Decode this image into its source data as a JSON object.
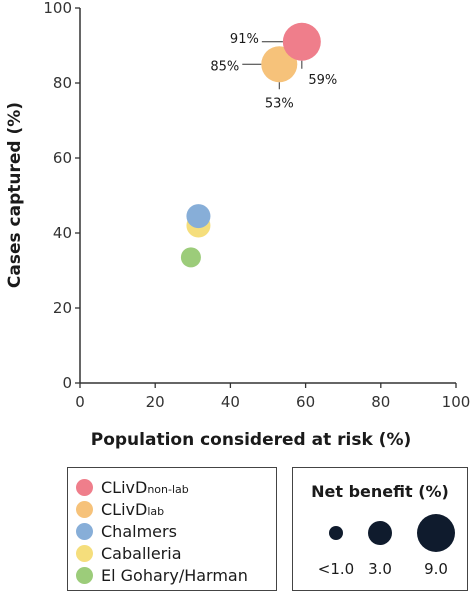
{
  "chart_data": {
    "type": "scatter",
    "xlabel": "Population considered at risk (%)",
    "ylabel": "Cases captured (%)",
    "xlim": [
      0,
      100
    ],
    "ylim": [
      0,
      100
    ],
    "x_ticks": [
      "0",
      "20",
      "40",
      "60",
      "80",
      "100"
    ],
    "y_ticks": [
      "0",
      "20",
      "40",
      "60",
      "80",
      "100"
    ],
    "grid": false,
    "series": [
      {
        "name": "CLivD",
        "subscript": "non-lab",
        "color": "#ef7e8b",
        "x": 59,
        "y": 91
      },
      {
        "name": "CLivD",
        "subscript": "lab",
        "color": "#f6c27a",
        "x": 53,
        "y": 85
      },
      {
        "name": "Chalmers",
        "subscript": "",
        "color": "#87aed8",
        "x": 31.5,
        "y": 44.5
      },
      {
        "name": "Caballeria",
        "subscript": "",
        "color": "#f5de7c",
        "x": 31.5,
        "y": 42
      },
      {
        "name": "El Gohary/Harman",
        "subscript": "",
        "color": "#9ccc7a",
        "x": 29.5,
        "y": 33.5
      }
    ],
    "annotations": [
      {
        "text": "91%",
        "series": 0,
        "kind": "y"
      },
      {
        "text": "59%",
        "series": 0,
        "kind": "x"
      },
      {
        "text": "85%",
        "series": 1,
        "kind": "y"
      },
      {
        "text": "53%",
        "series": 1,
        "kind": "x"
      }
    ],
    "size_legend": {
      "title": "Net benefit (%)",
      "items": [
        {
          "label": "<1.0"
        },
        {
          "label": "3.0"
        },
        {
          "label": "9.0"
        }
      ]
    },
    "legend_position": "bottom"
  }
}
